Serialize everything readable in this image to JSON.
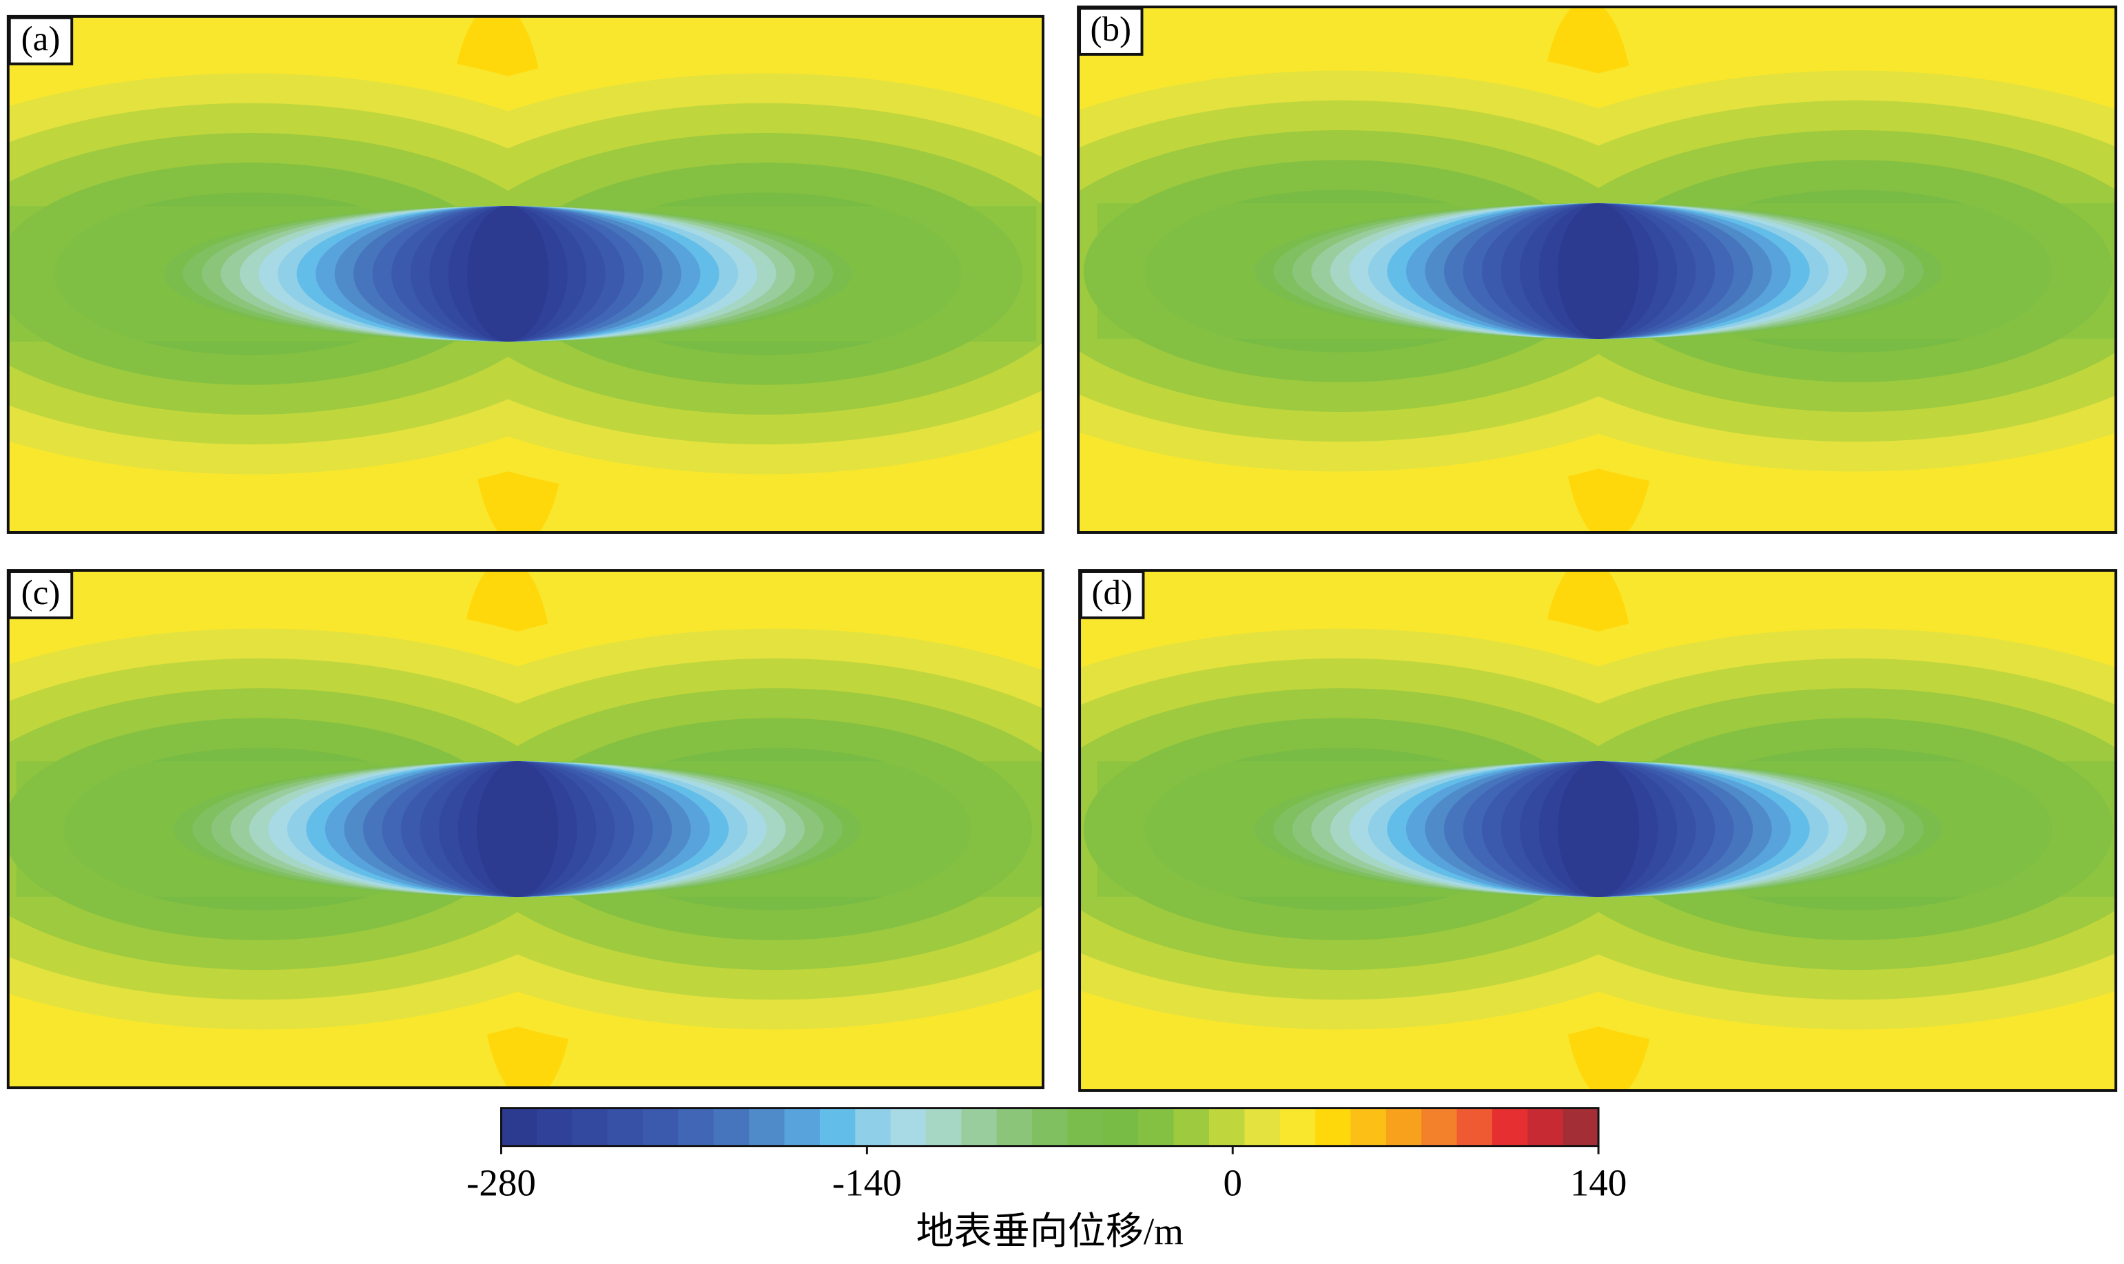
{
  "chart_data": {
    "type": "contour",
    "panels": [
      "(a)",
      "(b)",
      "(c)",
      "(d)"
    ],
    "colorbar": {
      "lim": [
        -280,
        140
      ],
      "ticks": [
        -280,
        -140,
        0,
        140
      ],
      "label": "地表垂向位移/m",
      "colors": [
        "#2c3a8f",
        "#2f4198",
        "#33499f",
        "#3751a6",
        "#3b5aad",
        "#4066b5",
        "#4675be",
        "#4f8ac9",
        "#58a3dc",
        "#63bde9",
        "#8fcfe8",
        "#a8dae5",
        "#a6d7c5",
        "#9acd9e",
        "#8bc57a",
        "#80c060",
        "#7abd4c",
        "#78bb45",
        "#84c142",
        "#9dca3e",
        "#c0d63d",
        "#e3e23f",
        "#f9e72e",
        "#fed80a",
        "#fbbf16",
        "#f7a11d",
        "#f3802a",
        "#ef5a32",
        "#e62f30",
        "#c72a33",
        "#a32e35"
      ]
    }
  }
}
